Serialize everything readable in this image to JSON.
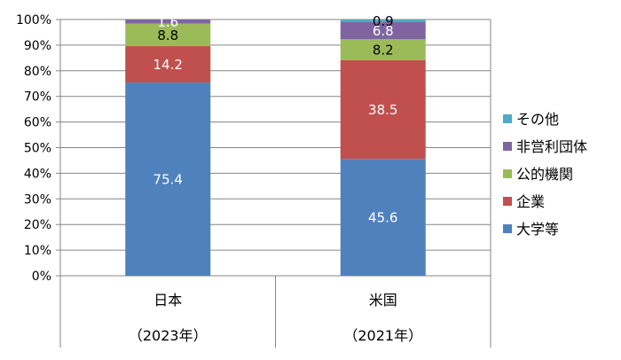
{
  "chart_data": {
    "type": "bar",
    "stacked": true,
    "categories": [
      "日本",
      "米国"
    ],
    "category_years": [
      "（2023年）",
      "（2021年）"
    ],
    "ylim": [
      0,
      100
    ],
    "y_ticks": [
      "0%",
      "10%",
      "20%",
      "30%",
      "40%",
      "50%",
      "60%",
      "70%",
      "80%",
      "90%",
      "100%"
    ],
    "grid": true,
    "legend_position": "right",
    "series": [
      {
        "name": "大学等",
        "color": "#4F81BD",
        "values": [
          75.4,
          45.6
        ],
        "labels": [
          "75.4",
          "45.6"
        ],
        "label_color": "#FFFFFF"
      },
      {
        "name": "企業",
        "color": "#C0504D",
        "values": [
          14.2,
          38.5
        ],
        "labels": [
          "14.2",
          "38.5"
        ],
        "label_color": "#FFFFFF"
      },
      {
        "name": "公的機関",
        "color": "#9BBB59",
        "values": [
          8.8,
          8.2
        ],
        "labels": [
          "8.8",
          "8.2"
        ],
        "label_color": "#000000"
      },
      {
        "name": "非営利団体",
        "color": "#8064A2",
        "values": [
          1.6,
          6.8
        ],
        "labels": [
          "1.6",
          "6.8"
        ],
        "label_color": "#FFFFFF"
      },
      {
        "name": "その他",
        "color": "#4BACC6",
        "values": [
          0.0,
          0.9
        ],
        "labels": [
          "",
          "0.9"
        ],
        "label_color": "#000000"
      }
    ]
  }
}
